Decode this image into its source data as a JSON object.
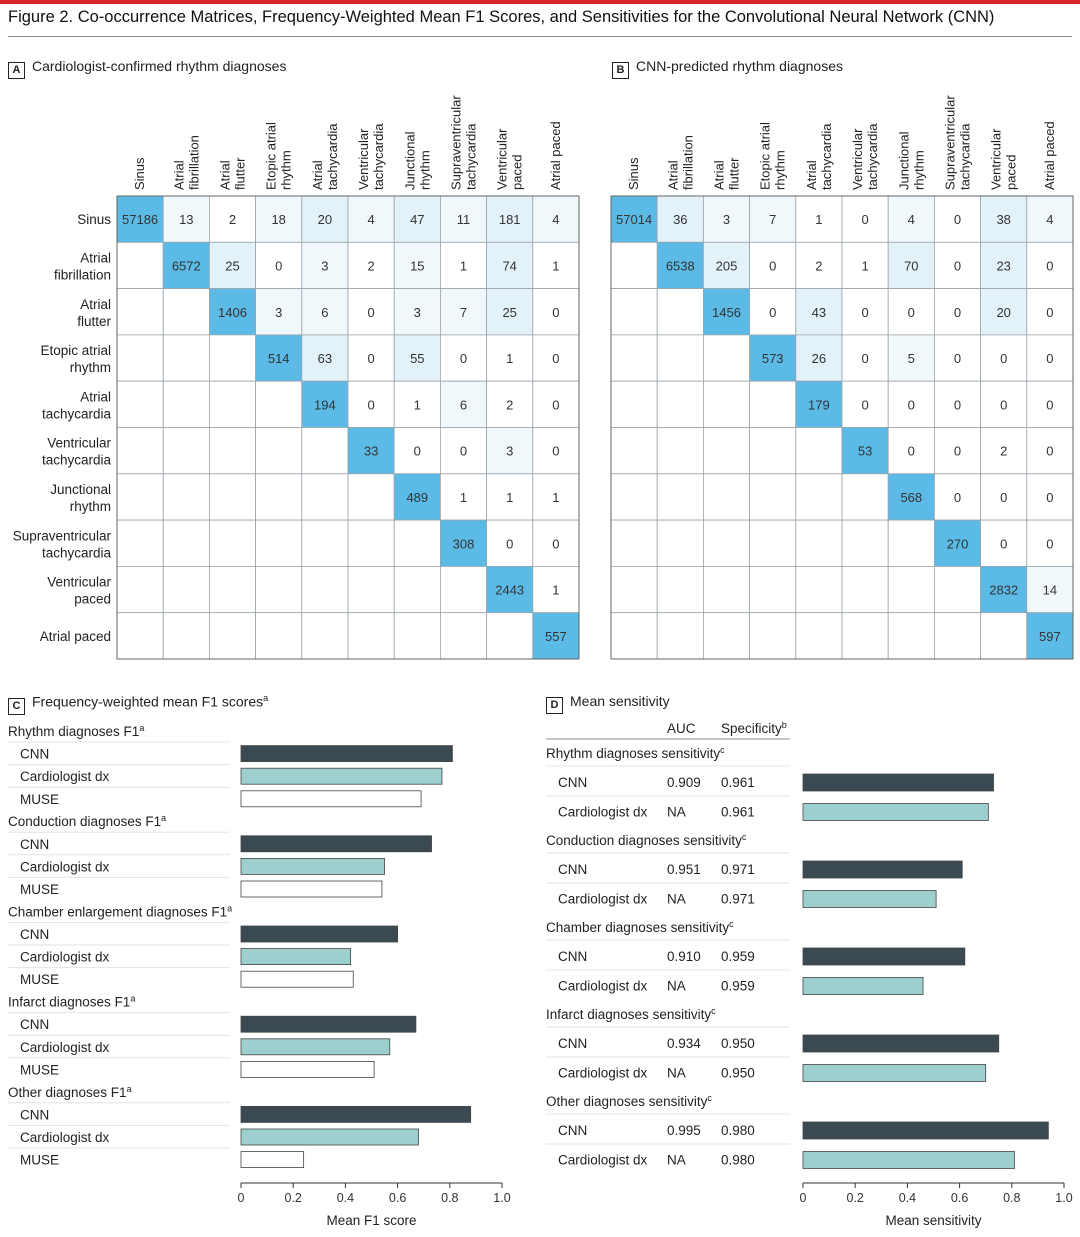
{
  "figure": {
    "title": "Figure 2. Co-occurrence Matrices, Frequency-Weighted Mean F1 Scores, and Sensitivities for the Convolutional Neural Network (CNN)"
  },
  "colors": {
    "accent_red": "#d8262b",
    "diag_blue": "#5bbbe6",
    "light_blue": "#e3f1f8",
    "faint_blue": "#f1f8fb",
    "cnn_dark": "#3b4a52",
    "cardiologist_teal": "#9dcfcf",
    "muse_white": "#ffffff"
  },
  "chart_data": [
    {
      "type": "heatmap",
      "panel": "A",
      "title": "Cardiologist-confirmed rhythm diagnoses",
      "row_labels": [
        "Sinus",
        "Atrial fibrillation",
        "Atrial flutter",
        "Etopic atrial rhythm",
        "Atrial tachycardia",
        "Ventricular tachycardia",
        "Junctional rhythm",
        "Supraventricular tachycardia",
        "Ventricular paced",
        "Atrial paced"
      ],
      "col_labels": [
        "Sinus",
        "Atrial fibrillation",
        "Atrial flutter",
        "Etopic atrial rhythm",
        "Atrial tachycardia",
        "Ventricular tachycardia",
        "Junctional rhythm",
        "Supraventricular tachycardia",
        "Ventricular paced",
        "Atrial paced"
      ],
      "values": [
        [
          57186,
          13,
          2,
          18,
          20,
          4,
          47,
          11,
          181,
          4
        ],
        [
          null,
          6572,
          25,
          0,
          3,
          2,
          15,
          1,
          74,
          1
        ],
        [
          null,
          null,
          1406,
          3,
          6,
          0,
          3,
          7,
          25,
          0
        ],
        [
          null,
          null,
          null,
          514,
          63,
          0,
          55,
          0,
          1,
          0
        ],
        [
          null,
          null,
          null,
          null,
          194,
          0,
          1,
          6,
          2,
          0
        ],
        [
          null,
          null,
          null,
          null,
          null,
          33,
          0,
          0,
          3,
          0
        ],
        [
          null,
          null,
          null,
          null,
          null,
          null,
          489,
          1,
          1,
          1
        ],
        [
          null,
          null,
          null,
          null,
          null,
          null,
          null,
          308,
          0,
          0
        ],
        [
          null,
          null,
          null,
          null,
          null,
          null,
          null,
          null,
          2443,
          1
        ],
        [
          null,
          null,
          null,
          null,
          null,
          null,
          null,
          null,
          null,
          557
        ]
      ]
    },
    {
      "type": "heatmap",
      "panel": "B",
      "title": "CNN-predicted rhythm diagnoses",
      "row_labels": [
        "Sinus",
        "Atrial fibrillation",
        "Atrial flutter",
        "Etopic atrial rhythm",
        "Atrial tachycardia",
        "Ventricular tachycardia",
        "Junctional rhythm",
        "Supraventricular tachycardia",
        "Ventricular paced",
        "Atrial paced"
      ],
      "col_labels": [
        "Sinus",
        "Atrial fibrillation",
        "Atrial flutter",
        "Etopic atrial rhythm",
        "Atrial tachycardia",
        "Ventricular tachycardia",
        "Junctional rhythm",
        "Supraventricular tachycardia",
        "Ventricular paced",
        "Atrial paced"
      ],
      "values": [
        [
          57014,
          36,
          3,
          7,
          1,
          0,
          4,
          0,
          38,
          4
        ],
        [
          null,
          6538,
          205,
          0,
          2,
          1,
          70,
          0,
          23,
          0
        ],
        [
          null,
          null,
          1456,
          0,
          43,
          0,
          0,
          0,
          20,
          0
        ],
        [
          null,
          null,
          null,
          573,
          26,
          0,
          5,
          0,
          0,
          0
        ],
        [
          null,
          null,
          null,
          null,
          179,
          0,
          0,
          0,
          0,
          0
        ],
        [
          null,
          null,
          null,
          null,
          null,
          53,
          0,
          0,
          2,
          0
        ],
        [
          null,
          null,
          null,
          null,
          null,
          null,
          568,
          0,
          0,
          0
        ],
        [
          null,
          null,
          null,
          null,
          null,
          null,
          null,
          270,
          0,
          0
        ],
        [
          null,
          null,
          null,
          null,
          null,
          null,
          null,
          null,
          2832,
          14
        ],
        [
          null,
          null,
          null,
          null,
          null,
          null,
          null,
          null,
          null,
          597
        ]
      ]
    },
    {
      "type": "bar",
      "orientation": "horizontal",
      "panel": "C",
      "title": "Frequency-weighted mean F1 scores",
      "title_mark": "a",
      "xlabel": "Mean F1 score",
      "xlim": [
        0,
        1.0
      ],
      "ticks": [
        "0",
        "0.2",
        "0.4",
        "0.6",
        "0.8",
        "1.0"
      ],
      "groups": [
        {
          "label": "Rhythm diagnoses F1",
          "mark": "a",
          "bars": [
            {
              "name": "CNN",
              "value": 0.81
            },
            {
              "name": "Cardiologist dx",
              "value": 0.77
            },
            {
              "name": "MUSE",
              "value": 0.69
            }
          ]
        },
        {
          "label": "Conduction diagnoses F1",
          "mark": "a",
          "bars": [
            {
              "name": "CNN",
              "value": 0.73
            },
            {
              "name": "Cardiologist dx",
              "value": 0.55
            },
            {
              "name": "MUSE",
              "value": 0.54
            }
          ]
        },
        {
          "label": "Chamber enlargement diagnoses F1",
          "mark": "a",
          "bars": [
            {
              "name": "CNN",
              "value": 0.6
            },
            {
              "name": "Cardiologist dx",
              "value": 0.42
            },
            {
              "name": "MUSE",
              "value": 0.43
            }
          ]
        },
        {
          "label": "Infarct diagnoses F1",
          "mark": "a",
          "bars": [
            {
              "name": "CNN",
              "value": 0.67
            },
            {
              "name": "Cardiologist dx",
              "value": 0.57
            },
            {
              "name": "MUSE",
              "value": 0.51
            }
          ]
        },
        {
          "label": "Other diagnoses F1",
          "mark": "a",
          "bars": [
            {
              "name": "CNN",
              "value": 0.88
            },
            {
              "name": "Cardiologist dx",
              "value": 0.68
            },
            {
              "name": "MUSE",
              "value": 0.24
            }
          ]
        }
      ]
    },
    {
      "type": "bar",
      "orientation": "horizontal",
      "panel": "D",
      "title": "Mean sensitivity",
      "xlabel": "Mean sensitivity",
      "xlim": [
        0,
        1.0
      ],
      "ticks": [
        "0",
        "0.2",
        "0.4",
        "0.6",
        "0.8",
        "1.0"
      ],
      "column_headers": {
        "auc": "AUC",
        "specificity": "Specificity",
        "specificity_mark": "b"
      },
      "groups": [
        {
          "label": "Rhythm diagnoses sensitivity",
          "mark": "c",
          "bars": [
            {
              "name": "CNN",
              "auc": "0.909",
              "specificity": "0.961",
              "value": 0.73
            },
            {
              "name": "Cardiologist dx",
              "auc": "NA",
              "specificity": "0.961",
              "value": 0.71
            }
          ]
        },
        {
          "label": "Conduction diagnoses sensitivity",
          "mark": "c",
          "bars": [
            {
              "name": "CNN",
              "auc": "0.951",
              "specificity": "0.971",
              "value": 0.61
            },
            {
              "name": "Cardiologist dx",
              "auc": "NA",
              "specificity": "0.971",
              "value": 0.51
            }
          ]
        },
        {
          "label": "Chamber diagnoses sensitivity",
          "mark": "c",
          "bars": [
            {
              "name": "CNN",
              "auc": "0.910",
              "specificity": "0.959",
              "value": 0.62
            },
            {
              "name": "Cardiologist dx",
              "auc": "NA",
              "specificity": "0.959",
              "value": 0.46
            }
          ]
        },
        {
          "label": "Infarct diagnoses sensitivity",
          "mark": "c",
          "bars": [
            {
              "name": "CNN",
              "auc": "0.934",
              "specificity": "0.950",
              "value": 0.75
            },
            {
              "name": "Cardiologist dx",
              "auc": "NA",
              "specificity": "0.950",
              "value": 0.7
            }
          ]
        },
        {
          "label": "Other diagnoses sensitivity",
          "mark": "c",
          "bars": [
            {
              "name": "CNN",
              "auc": "0.995",
              "specificity": "0.980",
              "value": 0.94
            },
            {
              "name": "Cardiologist dx",
              "auc": "NA",
              "specificity": "0.980",
              "value": 0.81
            }
          ]
        }
      ]
    }
  ]
}
